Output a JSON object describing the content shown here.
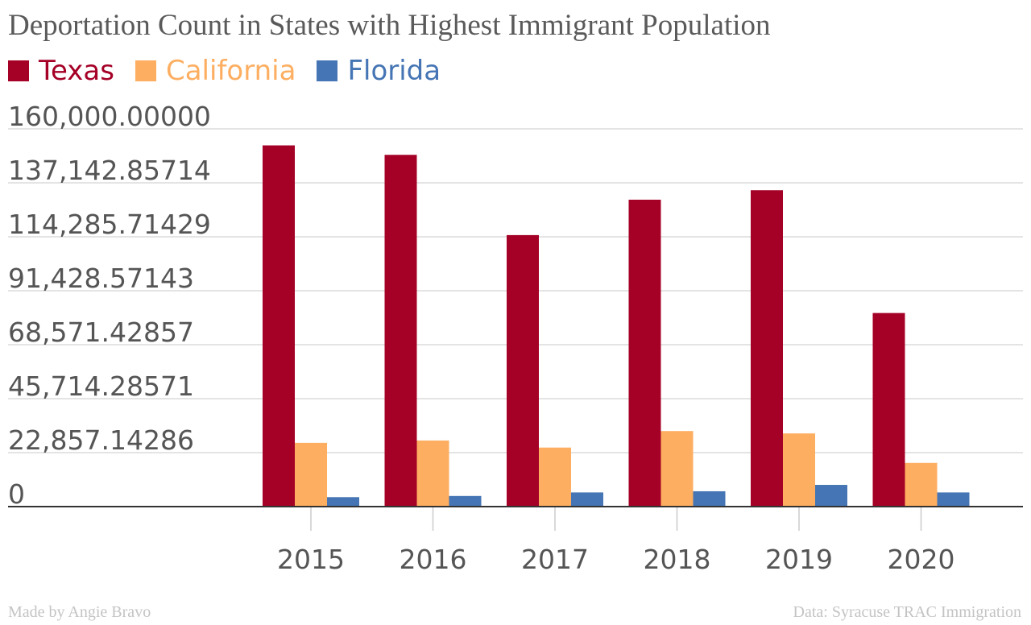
{
  "chart_data": {
    "type": "bar",
    "title": "Deportation Count in States with Highest Immigrant Population",
    "categories": [
      "2015",
      "2016",
      "2017",
      "2018",
      "2019",
      "2020"
    ],
    "series": [
      {
        "name": "Texas",
        "color": "#a50026",
        "values": [
          153000,
          149000,
          115000,
          130000,
          134000,
          82000
        ]
      },
      {
        "name": "California",
        "color": "#fdae61",
        "values": [
          27000,
          28000,
          25000,
          32000,
          31000,
          18500
        ]
      },
      {
        "name": "Florida",
        "color": "#4575b4",
        "values": [
          4000,
          4500,
          6000,
          6500,
          9200,
          6000
        ]
      }
    ],
    "ylim": [
      0,
      160000
    ],
    "yticks": [
      "0",
      "22,857.14286",
      "45,714.28571",
      "68,571.42857",
      "91,428.57143",
      "114,285.71429",
      "137,142.85714",
      "160,000.00000"
    ],
    "grid": true,
    "legend_position": "top-left"
  },
  "footer": {
    "credit": "Made by Angie Bravo",
    "source": "Data: Syracuse TRAC Immigration"
  }
}
